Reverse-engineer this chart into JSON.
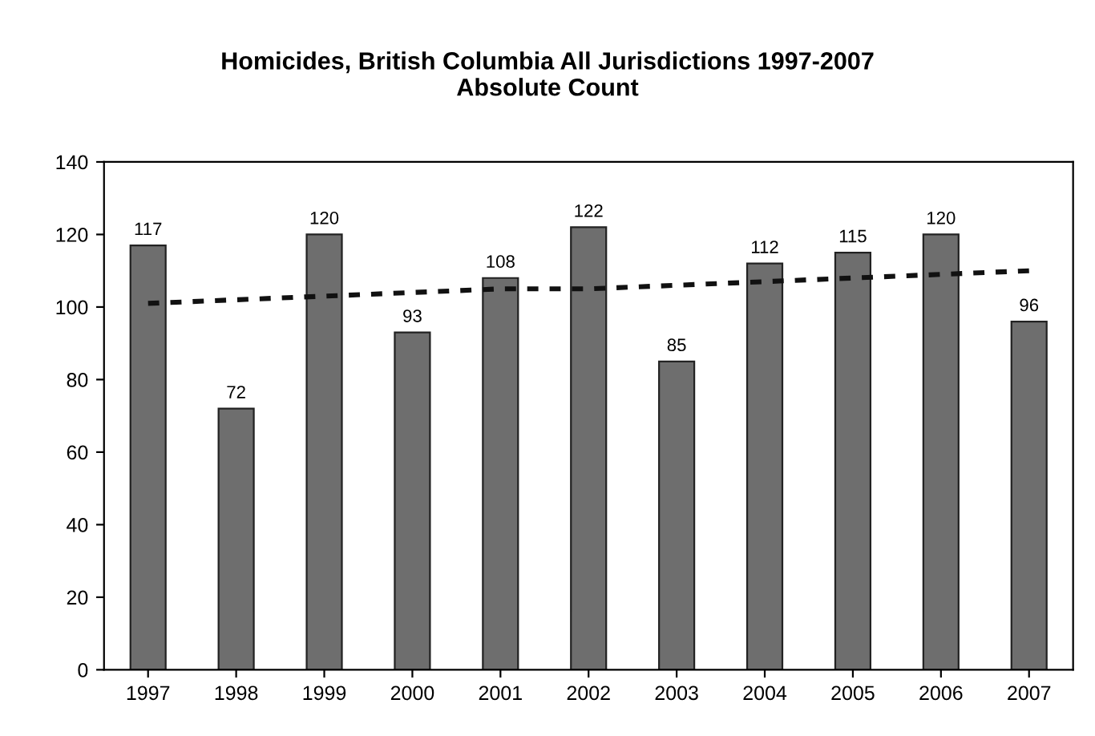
{
  "chart_data": {
    "type": "bar",
    "title": "Homicides, British Columbia All Jurisdictions 1997-2007\nAbsolute Count",
    "categories": [
      "1997",
      "1998",
      "1999",
      "2000",
      "2001",
      "2002",
      "2003",
      "2004",
      "2005",
      "2006",
      "2007"
    ],
    "series": [
      {
        "color": "#6e6e6e",
        "values": [
          117,
          72,
          120,
          93,
          108,
          122,
          85,
          112,
          115,
          120,
          96
        ],
        "data_labels": true
      },
      {
        "type": "line",
        "color": "#111111",
        "line_style": "dashed",
        "values": [
          101,
          102,
          103,
          104,
          105,
          105,
          106,
          107,
          108,
          109,
          110
        ]
      }
    ],
    "ylim": [
      0,
      140
    ],
    "yticks": [
      0,
      20,
      40,
      60,
      80,
      100,
      120,
      140
    ],
    "grid": false,
    "legend": false
  }
}
